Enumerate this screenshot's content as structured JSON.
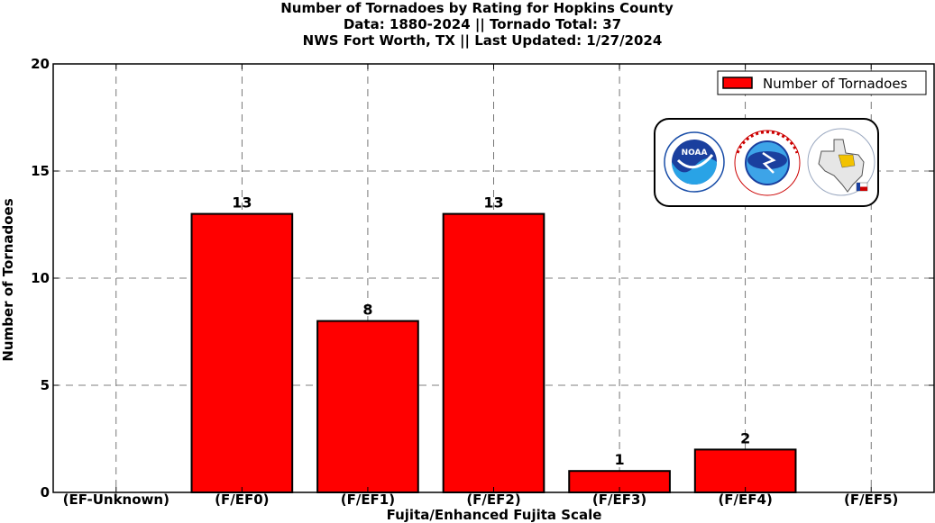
{
  "title_lines": [
    "Number of Tornadoes by Rating for Hopkins County",
    "Data: 1880-2024 || Tornado Total: 37",
    "NWS Fort Worth, TX || Last Updated: 1/27/2024"
  ],
  "colors": {
    "bar": "#ff0000",
    "edge": "#000000",
    "grid": "#555555"
  },
  "logos": [
    "noaa-logo",
    "nws-logo",
    "nws-fort-worth-logo"
  ],
  "chart_data": {
    "type": "bar",
    "categories": [
      "(EF-Unknown)",
      "(F/EF0)",
      "(F/EF1)",
      "(F/EF2)",
      "(F/EF3)",
      "(F/EF4)",
      "(F/EF5)"
    ],
    "series": [
      {
        "name": "Number of Tornadoes",
        "values": [
          0,
          13,
          8,
          13,
          1,
          2,
          0
        ]
      }
    ],
    "data_labels": [
      "",
      "13",
      "8",
      "13",
      "1",
      "2",
      ""
    ],
    "xlabel": "Fujita/Enhanced Fujita Scale",
    "ylabel": "Number of Tornadoes",
    "ylim": [
      0,
      20
    ],
    "yticks": [
      "0",
      "5",
      "10",
      "15",
      "20"
    ],
    "grid": true,
    "legend_position": "top-right"
  }
}
